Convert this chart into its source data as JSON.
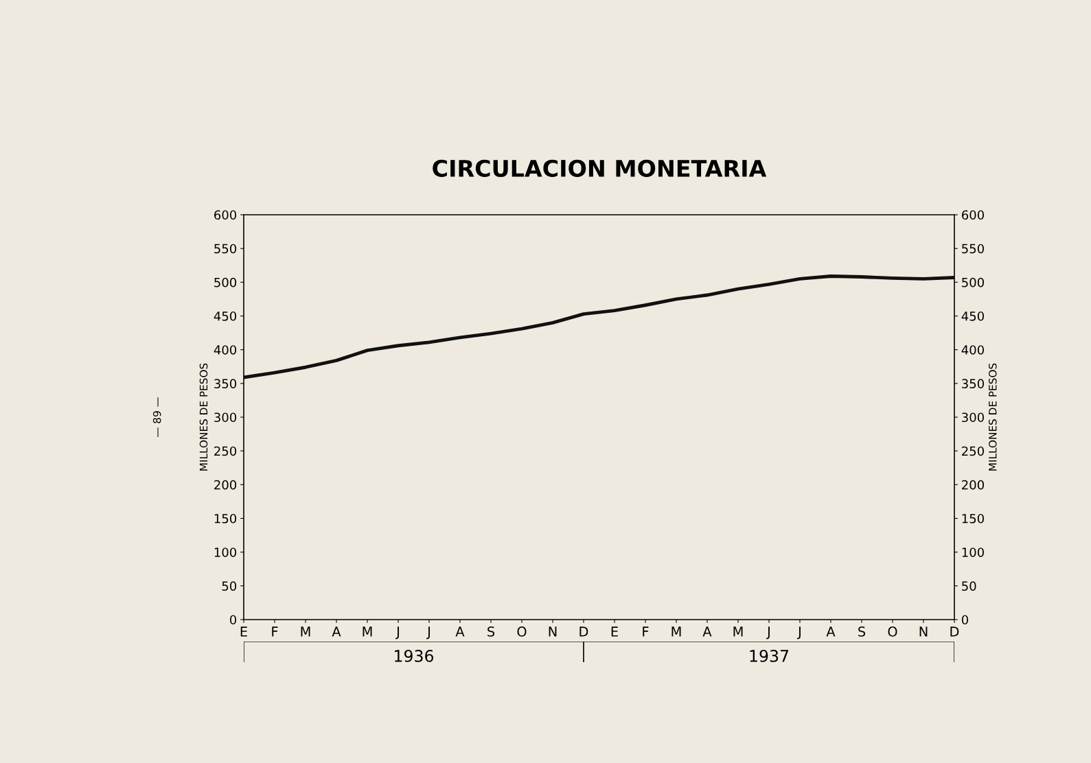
{
  "chart_data": {
    "type": "line",
    "title": "CIRCULACION MONETARIA",
    "ylabel": "MILLONES DE PESOS",
    "y2label": "MILLONES DE PESOS",
    "categories": [
      "E",
      "F",
      "M",
      "A",
      "M",
      "J",
      "J",
      "A",
      "S",
      "O",
      "N",
      "D",
      "E",
      "F",
      "M",
      "A",
      "M",
      "J",
      "J",
      "A",
      "S",
      "O",
      "N",
      "D"
    ],
    "series": [
      {
        "color": "#111111",
        "values": [
          359,
          366,
          374,
          384,
          399,
          406,
          411,
          418,
          424,
          431,
          440,
          453,
          458,
          466,
          475,
          481,
          490,
          497,
          505,
          509,
          508,
          506,
          505,
          507
        ]
      }
    ],
    "ylim": [
      0,
      600
    ],
    "yticks": [
      0,
      50,
      100,
      150,
      200,
      250,
      300,
      350,
      400,
      450,
      500,
      550,
      600
    ],
    "y2lim": [
      0,
      600
    ],
    "y2ticks": [
      0,
      50,
      100,
      150,
      200,
      250,
      300,
      350,
      400,
      450,
      500,
      550,
      600
    ],
    "annotations": [
      "1936",
      "1937",
      "— 89 —"
    ],
    "grid": false,
    "legend": false,
    "marker": "none",
    "line_style": "solid"
  }
}
